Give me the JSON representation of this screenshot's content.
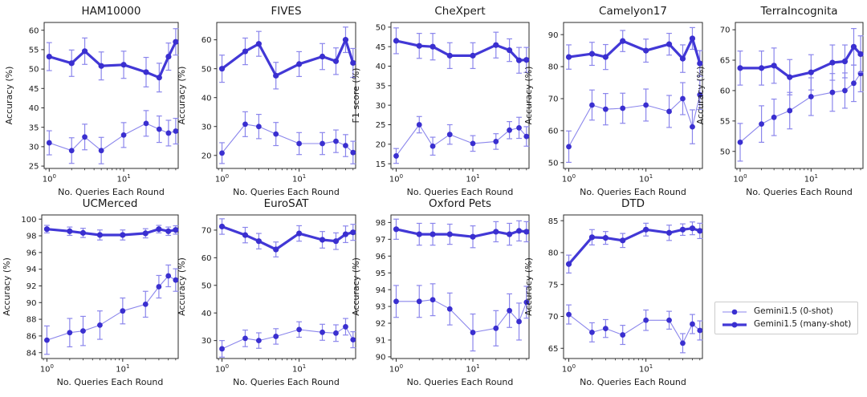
{
  "figure": {
    "xlabel": "No. Queries Each Round",
    "xscale": "log",
    "xlim": [
      0.855,
      54
    ],
    "x_major_ticks": [
      {
        "v": 1,
        "base": "10",
        "exp": "0"
      },
      {
        "v": 10,
        "base": "10",
        "exp": "1"
      }
    ],
    "x_minor_ticks": [
      0.9,
      2,
      3,
      4,
      5,
      6,
      7,
      8,
      9,
      20,
      30,
      40,
      50
    ]
  },
  "colors": {
    "marker": "#3a2fd0",
    "thick_line": "#4238d6",
    "thin_line": "#8b86ec",
    "error_bar": "#8b86ec",
    "axis": "#2b2b2b",
    "text": "#1a1a1a"
  },
  "legend": {
    "items": [
      {
        "label": "Gemini1.5 (0-shot)",
        "style": "thin"
      },
      {
        "label": "Gemini1.5 (many-shot)",
        "style": "thick"
      }
    ]
  },
  "chart_data": [
    {
      "type": "line",
      "title": "HAM10000",
      "ylabel": "Accuracy (%)",
      "xlabel": "No. Queries Each Round",
      "x": [
        1,
        2,
        3,
        5,
        10,
        20,
        30,
        40,
        50
      ],
      "ylim": [
        24.4,
        62
      ],
      "yticks": [
        25,
        30,
        35,
        40,
        45,
        50,
        55,
        60
      ],
      "series": [
        {
          "name": "Gemini1.5 (0-shot)",
          "style": "thin",
          "values": [
            31,
            29,
            32.5,
            29,
            33,
            36,
            34.5,
            33.5,
            34
          ],
          "err": [
            3.1,
            3.3,
            3.3,
            3.4,
            3.2,
            3.3,
            3.4,
            3.3,
            3.3
          ]
        },
        {
          "name": "Gemini1.5 (many-shot)",
          "style": "thick",
          "values": [
            53.2,
            51.5,
            54.6,
            50.8,
            51.1,
            49.2,
            47.8,
            53.2,
            57
          ],
          "err": [
            3.6,
            3.4,
            3.4,
            3.6,
            3.5,
            3.8,
            3.7,
            3.5,
            3.4
          ]
        }
      ]
    },
    {
      "type": "line",
      "title": "FIVES",
      "ylabel": "Accuracy (%)",
      "xlabel": "No. Queries Each Round",
      "x": [
        1,
        2,
        3,
        5,
        10,
        20,
        30,
        40,
        50
      ],
      "ylim": [
        15.5,
        66
      ],
      "yticks": [
        20,
        30,
        40,
        50,
        60
      ],
      "series": [
        {
          "name": "Gemini1.5 (0-shot)",
          "style": "thin",
          "values": [
            20.8,
            30.8,
            30,
            27.4,
            24.1,
            24.1,
            24.9,
            23.4,
            21
          ],
          "err": [
            3.6,
            4.3,
            4.2,
            4,
            3.8,
            3.8,
            3.9,
            3.8,
            3.9
          ]
        },
        {
          "name": "Gemini1.5 (many-shot)",
          "style": "thick",
          "values": [
            50,
            56,
            58.6,
            47.6,
            51.6,
            54.2,
            52.6,
            60,
            52
          ],
          "err": [
            4.7,
            4.6,
            4.3,
            4.6,
            4.3,
            4.5,
            4.6,
            4.4,
            5
          ]
        }
      ]
    },
    {
      "type": "line",
      "title": "CheXpert",
      "ylabel": "F1 score (%)",
      "xlabel": "No. Queries Each Round",
      "x": [
        1,
        2,
        3,
        5,
        10,
        20,
        30,
        40,
        50
      ],
      "ylim": [
        13.8,
        51.2
      ],
      "yticks": [
        15,
        20,
        25,
        30,
        35,
        40,
        45,
        50
      ],
      "series": [
        {
          "name": "Gemini1.5 (0-shot)",
          "style": "thin",
          "values": [
            17,
            25,
            19.5,
            22.5,
            20.2,
            20.7,
            23.6,
            24.2,
            22
          ],
          "err": [
            1.9,
            2.1,
            2.3,
            2.5,
            2,
            2,
            2.2,
            2.7,
            2.5
          ]
        },
        {
          "name": "Gemini1.5 (many-shot)",
          "style": "thick",
          "values": [
            46.5,
            45.2,
            45,
            42.7,
            42.7,
            45.4,
            44.1,
            41.5,
            41.6
          ],
          "err": [
            3.3,
            3.2,
            3.4,
            3.3,
            3.3,
            3.3,
            2.9,
            3.3,
            3.2
          ]
        }
      ]
    },
    {
      "type": "line",
      "title": "Camelyon17",
      "ylabel": "Accuracy (%)",
      "xlabel": "No. Queries Each Round",
      "x": [
        1,
        2,
        3,
        5,
        10,
        20,
        30,
        40,
        50
      ],
      "ylim": [
        48.2,
        93.8
      ],
      "yticks": [
        50,
        60,
        70,
        80,
        90
      ],
      "series": [
        {
          "name": "Gemini1.5 (0-shot)",
          "style": "thin",
          "values": [
            55,
            68,
            66.7,
            67,
            68,
            66,
            70,
            61.2,
            71.2
          ],
          "err": [
            4.9,
            4.7,
            4.9,
            4.7,
            5,
            5,
            5,
            5.3,
            4.6
          ]
        },
        {
          "name": "Gemini1.5 (many-shot)",
          "style": "thick",
          "values": [
            83,
            84,
            83,
            88,
            85,
            87,
            82.5,
            88.8,
            81
          ],
          "err": [
            3.8,
            3.6,
            3.9,
            3.3,
            3.6,
            3.4,
            4.3,
            3.4,
            4
          ]
        }
      ]
    },
    {
      "type": "line",
      "title": "TerraIncognita",
      "ylabel": "Accuracy (%)",
      "xlabel": "No. Queries Each Round",
      "x": [
        1,
        2,
        3,
        5,
        10,
        20,
        30,
        40,
        50
      ],
      "ylim": [
        47.2,
        71.2
      ],
      "yticks": [
        50,
        55,
        60,
        65,
        70
      ],
      "series": [
        {
          "name": "Gemini1.5 (0-shot)",
          "style": "thin",
          "values": [
            51.5,
            54.5,
            55.6,
            56.7,
            59,
            59.7,
            60,
            61.2,
            62.8
          ],
          "err": [
            3.1,
            3,
            3,
            3,
            3.1,
            3.1,
            2.9,
            3,
            3
          ]
        },
        {
          "name": "Gemini1.5 (many-shot)",
          "style": "thick",
          "values": [
            63.7,
            63.7,
            64.1,
            62.2,
            63,
            64.6,
            64.8,
            67.2,
            66
          ],
          "err": [
            2.8,
            2.8,
            2.9,
            2.9,
            2.9,
            2.9,
            2.7,
            3,
            3
          ]
        }
      ]
    },
    {
      "type": "line",
      "title": "UCMerced",
      "ylabel": "Accuracy (%)",
      "xlabel": "No. Queries Each Round",
      "x": [
        1,
        2,
        3,
        5,
        10,
        20,
        30,
        40,
        50
      ],
      "ylim": [
        83.3,
        100.5
      ],
      "yticks": [
        84,
        86,
        88,
        90,
        92,
        94,
        96,
        98,
        100
      ],
      "series": [
        {
          "name": "Gemini1.5 (0-shot)",
          "style": "thin",
          "values": [
            85.5,
            86.4,
            86.6,
            87.3,
            89,
            89.8,
            91.9,
            93.2,
            92.7
          ],
          "err": [
            1.7,
            1.7,
            1.75,
            1.7,
            1.55,
            1.55,
            1.35,
            1.3,
            1.35
          ]
        },
        {
          "name": "Gemini1.5 (many-shot)",
          "style": "thick",
          "values": [
            98.8,
            98.55,
            98.35,
            98.1,
            98.1,
            98.3,
            98.8,
            98.55,
            98.7
          ],
          "err": [
            0.45,
            0.5,
            0.55,
            0.6,
            0.6,
            0.55,
            0.45,
            0.5,
            0.5
          ]
        }
      ]
    },
    {
      "type": "line",
      "title": "EuroSAT",
      "ylabel": "Accuracy (%)",
      "xlabel": "No. Queries Each Round",
      "x": [
        1,
        2,
        3,
        5,
        10,
        20,
        30,
        40,
        50
      ],
      "ylim": [
        23.5,
        75.5
      ],
      "yticks": [
        30,
        40,
        50,
        60,
        70
      ],
      "series": [
        {
          "name": "Gemini1.5 (0-shot)",
          "style": "thin",
          "values": [
            27,
            30.8,
            30,
            31.5,
            34,
            33,
            32.7,
            35,
            30.3
          ],
          "err": [
            3,
            3,
            2.8,
            2.8,
            2.8,
            2.9,
            3,
            3,
            2.9
          ]
        },
        {
          "name": "Gemini1.5 (many-shot)",
          "style": "thick",
          "values": [
            71.3,
            68.2,
            66,
            63,
            68.8,
            66.5,
            66,
            68.5,
            69.2
          ],
          "err": [
            2.8,
            2.8,
            2.8,
            2.7,
            2.8,
            3,
            3,
            3,
            2.9
          ]
        }
      ]
    },
    {
      "type": "line",
      "title": "Oxford Pets",
      "ylabel": "Accuracy (%)",
      "xlabel": "No. Queries Each Round",
      "x": [
        1,
        2,
        3,
        5,
        10,
        20,
        30,
        40,
        50
      ],
      "ylim": [
        89.9,
        98.45
      ],
      "yticks": [
        90,
        91,
        92,
        93,
        94,
        95,
        96,
        97,
        98
      ],
      "series": [
        {
          "name": "Gemini1.5 (0-shot)",
          "style": "thin",
          "values": [
            93.3,
            93.3,
            93.4,
            92.85,
            91.45,
            91.7,
            92.75,
            92.1,
            93.25
          ],
          "err": [
            0.95,
            0.95,
            0.95,
            0.95,
            1.1,
            1.05,
            1,
            1.1,
            0.95
          ]
        },
        {
          "name": "Gemini1.5 (many-shot)",
          "style": "thick",
          "values": [
            97.6,
            97.3,
            97.3,
            97.3,
            97.15,
            97.45,
            97.3,
            97.5,
            97.45
          ],
          "err": [
            0.6,
            0.65,
            0.65,
            0.6,
            0.65,
            0.6,
            0.65,
            0.6,
            0.6
          ]
        }
      ]
    },
    {
      "type": "line",
      "title": "DTD",
      "ylabel": "Accuracy (%)",
      "xlabel": "No. Queries Each Round",
      "x": [
        1,
        2,
        3,
        5,
        10,
        20,
        30,
        40,
        50
      ],
      "ylim": [
        63.4,
        85.9
      ],
      "yticks": [
        65,
        70,
        75,
        80,
        85
      ],
      "series": [
        {
          "name": "Gemini1.5 (0-shot)",
          "style": "thin",
          "values": [
            70.3,
            67.5,
            68.1,
            67.1,
            69.4,
            69.4,
            65.8,
            68.8,
            67.8
          ],
          "err": [
            1.5,
            1.5,
            1.4,
            1.5,
            1.6,
            1.4,
            1.5,
            1.5,
            1.5
          ]
        },
        {
          "name": "Gemini1.5 (many-shot)",
          "style": "thick",
          "values": [
            78.2,
            82.4,
            82.3,
            81.9,
            83.6,
            83.1,
            83.6,
            83.8,
            83.4
          ],
          "err": [
            1.4,
            1.2,
            1,
            1.1,
            1,
            1.2,
            0.9,
            1,
            1.2
          ]
        }
      ]
    }
  ]
}
